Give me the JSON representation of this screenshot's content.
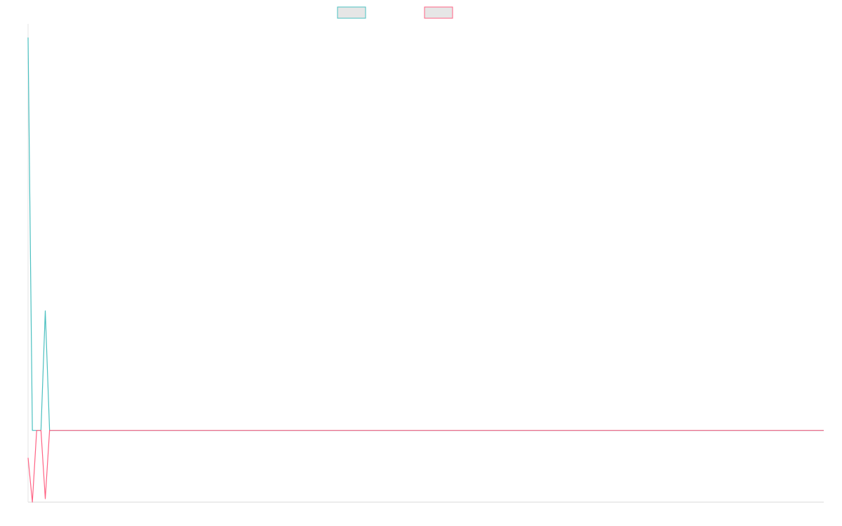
{
  "chart_data": {
    "type": "line",
    "title": "",
    "xlabel": "",
    "ylabel": "",
    "grid": false,
    "legend_position": "top-center",
    "x_count": 186,
    "ylim": [
      -1,
      6
    ],
    "series": [
      {
        "name": "",
        "color": "#4bc0c0",
        "legend_fill": "#e6e6e6",
        "values": [
          5.8,
          0.05,
          0.05,
          0.05,
          1.8,
          0.05
        ]
      },
      {
        "name": "",
        "color": "#ff6384",
        "legend_fill": "#e6e6e6",
        "values": [
          -0.35,
          -1.0,
          0.05,
          0.05,
          -0.95,
          0.05
        ]
      }
    ],
    "tail_value": 0.05
  }
}
